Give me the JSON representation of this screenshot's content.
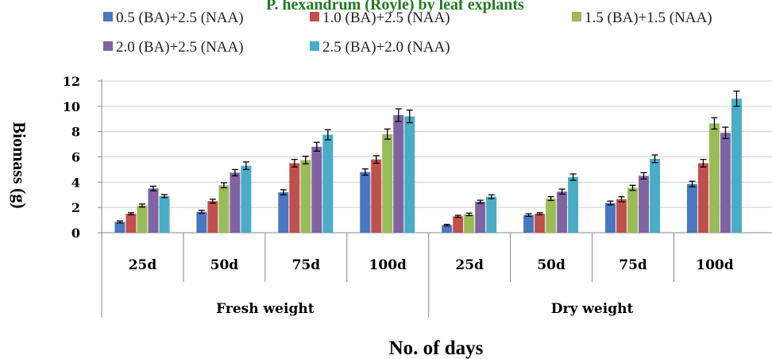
{
  "chart_data": {
    "type": "bar",
    "title": "P. hexandrum (Royle) by leaf explants",
    "xlabel": "No. of days",
    "ylabel": "Biomass (g)",
    "ylim": [
      0,
      12
    ],
    "yticks": [
      "0",
      "2",
      "4",
      "6",
      "8",
      "10",
      "12"
    ],
    "grid": true,
    "legend_position": "top",
    "groups": [
      "Fresh weight",
      "Dry weight"
    ],
    "categories": [
      "25d",
      "50d",
      "75d",
      "100d",
      "25d",
      "50d",
      "75d",
      "100d"
    ],
    "series": [
      {
        "name": "0.5 (BA)+2.5 (NAA)",
        "color": "#4a77c0",
        "values": [
          0.85,
          1.65,
          3.2,
          4.8,
          0.6,
          1.4,
          2.35,
          3.85
        ],
        "errors": [
          0.08,
          0.12,
          0.2,
          0.25,
          0.06,
          0.1,
          0.15,
          0.22
        ]
      },
      {
        "name": "1.0 (BA)+2.5 (NAA)",
        "color": "#c0504d",
        "values": [
          1.5,
          2.5,
          5.5,
          5.8,
          1.3,
          1.5,
          2.65,
          5.5
        ],
        "errors": [
          0.08,
          0.15,
          0.3,
          0.3,
          0.08,
          0.08,
          0.2,
          0.3
        ]
      },
      {
        "name": "1.5 (BA)+1.5 (NAA)",
        "color": "#9bbb59",
        "values": [
          2.15,
          3.75,
          5.75,
          7.8,
          1.45,
          2.7,
          3.55,
          8.65
        ],
        "errors": [
          0.12,
          0.2,
          0.3,
          0.4,
          0.1,
          0.15,
          0.2,
          0.45
        ]
      },
      {
        "name": "2.0 (BA)+2.5 (NAA)",
        "color": "#8064a2",
        "values": [
          3.5,
          4.75,
          6.8,
          9.3,
          2.45,
          3.25,
          4.5,
          7.9
        ],
        "errors": [
          0.18,
          0.25,
          0.35,
          0.5,
          0.12,
          0.2,
          0.25,
          0.45
        ]
      },
      {
        "name": "2.5 (BA)+2.0 (NAA)",
        "color": "#4bacc6",
        "values": [
          2.9,
          5.3,
          7.75,
          9.2,
          2.85,
          4.4,
          5.85,
          10.6
        ],
        "errors": [
          0.12,
          0.3,
          0.4,
          0.5,
          0.15,
          0.25,
          0.3,
          0.6
        ]
      }
    ]
  }
}
